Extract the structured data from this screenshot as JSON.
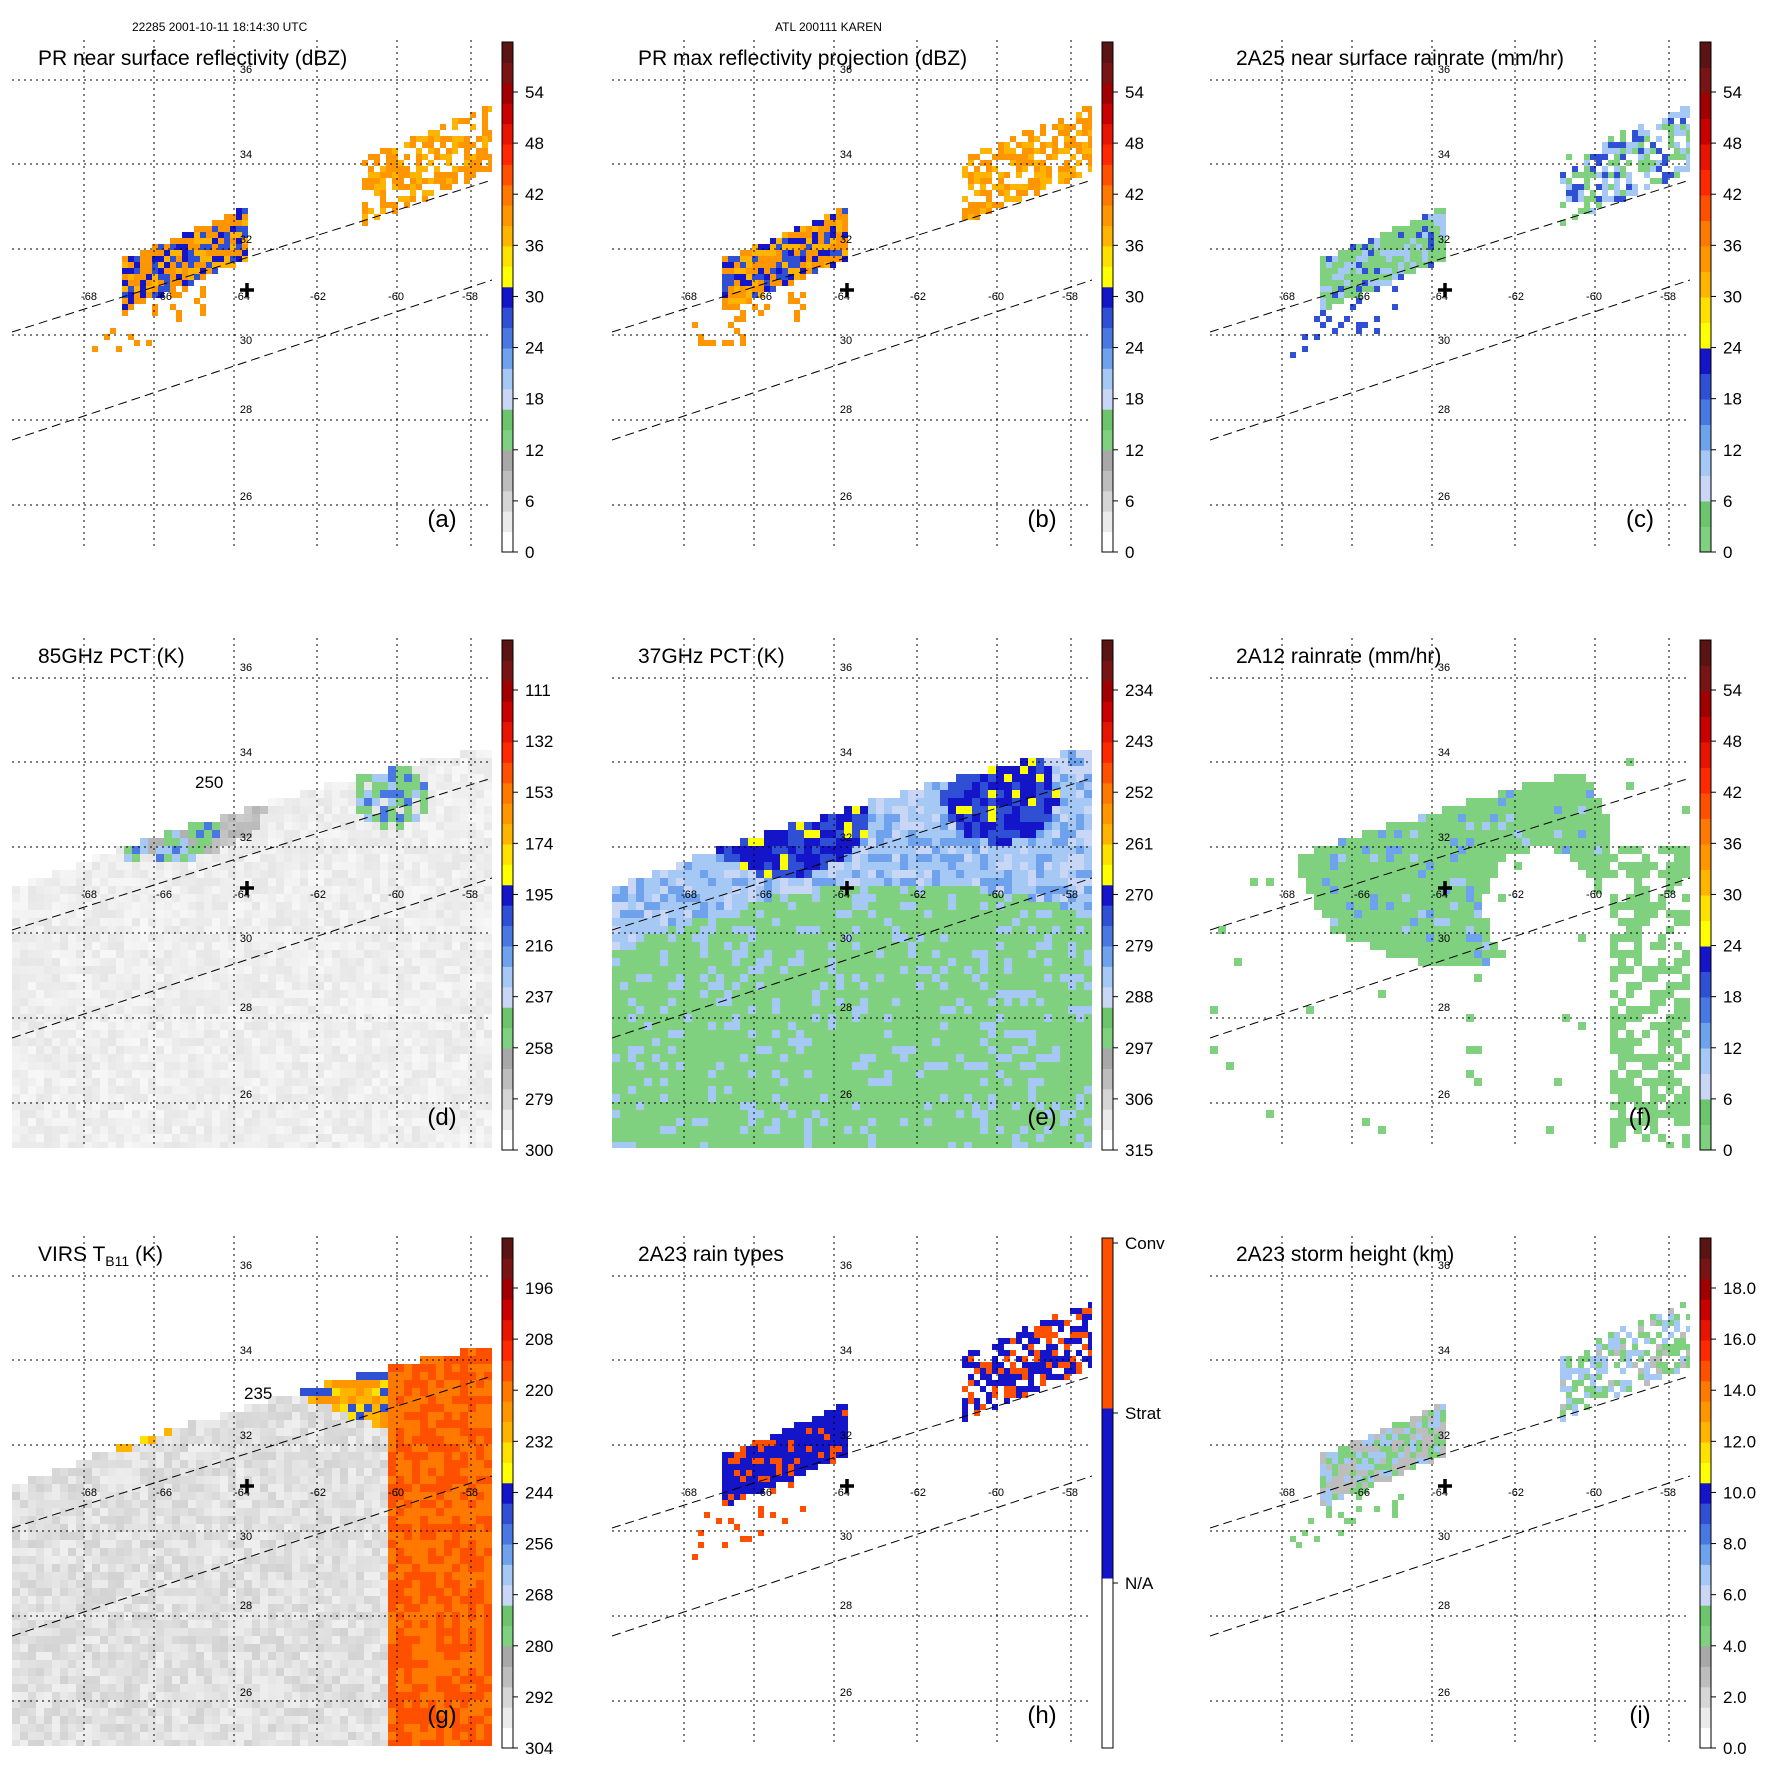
{
  "header": {
    "orbit_time": "22285 2001-10-11 18:14:30 UTC",
    "storm": "ATL 200111 KAREN"
  },
  "grid": {
    "lat_labels": [
      "36",
      "34",
      "32",
      "30",
      "28",
      "26"
    ],
    "lon_labels": [
      "-68",
      "-66",
      "-64",
      "-62",
      "-60",
      "-58"
    ]
  },
  "colors": {
    "reflectivity": [
      "#ffffff",
      "#ebebeb",
      "#d6d6d6",
      "#bdbdbd",
      "#a8a8a8",
      "#7fd17f",
      "#6cc56c",
      "#c9d6f5",
      "#a5c8f5",
      "#6fa2ec",
      "#4a78e2",
      "#2f4fd4",
      "#1414c8",
      "#ffff00",
      "#ffe100",
      "#ffb400",
      "#ff9600",
      "#ff7800",
      "#ff5000",
      "#ff2800",
      "#e61400",
      "#c80000",
      "#a00000",
      "#781414",
      "#5a1414"
    ],
    "rainrate": [
      "#7fd17f",
      "#6cc56c",
      "#c9d6f5",
      "#a5c8f5",
      "#6fa2ec",
      "#4a78e2",
      "#2f4fd4",
      "#1414c8",
      "#ffff00",
      "#ffe100",
      "#ffb400",
      "#ff9600",
      "#ff7800",
      "#ff5000",
      "#ff2800",
      "#e61400",
      "#c80000",
      "#a00000",
      "#781414",
      "#5a1414"
    ],
    "raintype": [
      "#ffffff",
      "#1414c8",
      "#ff5000"
    ],
    "storm_height": [
      "#ffffff",
      "#ebebeb",
      "#d6d6d6",
      "#bdbdbd",
      "#a8a8a8",
      "#7fd17f",
      "#6cc56c",
      "#c9d6f5",
      "#a5c8f5",
      "#6fa2ec",
      "#4a78e2",
      "#2f4fd4",
      "#1414c8",
      "#ffff00",
      "#ffe100",
      "#ffb400",
      "#ff9600",
      "#ff7800",
      "#ff5000",
      "#ff2800",
      "#e61400",
      "#c80000",
      "#a00000",
      "#781414",
      "#5a1414"
    ]
  },
  "chart_data": [
    {
      "type": "heatmap",
      "panel": "(a)",
      "title": "PR near surface reflectivity (dBZ)",
      "colorbar_ticks": [
        "54",
        "48",
        "42",
        "36",
        "30",
        "24",
        "18",
        "12",
        "6",
        "0"
      ],
      "range": [
        0,
        60
      ],
      "units": "dBZ"
    },
    {
      "type": "heatmap",
      "panel": "(b)",
      "title": "PR max reflectivity projection (dBZ)",
      "colorbar_ticks": [
        "54",
        "48",
        "42",
        "36",
        "30",
        "24",
        "18",
        "12",
        "6",
        "0"
      ],
      "range": [
        0,
        60
      ],
      "units": "dBZ"
    },
    {
      "type": "heatmap",
      "panel": "(c)",
      "title": "2A25 near surface rainrate (mm/hr)",
      "colorbar_ticks": [
        "54",
        "48",
        "42",
        "36",
        "30",
        "24",
        "18",
        "12",
        "6",
        "0"
      ],
      "range": [
        0,
        60
      ],
      "units": "mm/hr"
    },
    {
      "type": "heatmap",
      "panel": "(d)",
      "title": "85GHz PCT (K)",
      "colorbar_ticks": [
        "111",
        "132",
        "153",
        "174",
        "195",
        "216",
        "237",
        "258",
        "279",
        "300"
      ],
      "range": [
        90,
        300
      ],
      "units": "K",
      "contour_label": "250"
    },
    {
      "type": "heatmap",
      "panel": "(e)",
      "title": "37GHz PCT (K)",
      "colorbar_ticks": [
        "234",
        "243",
        "252",
        "261",
        "270",
        "279",
        "288",
        "297",
        "306",
        "315"
      ],
      "range": [
        225,
        315
      ],
      "units": "K"
    },
    {
      "type": "heatmap",
      "panel": "(f)",
      "title": "2A12 rainrate (mm/hr)",
      "colorbar_ticks": [
        "54",
        "48",
        "42",
        "36",
        "30",
        "24",
        "18",
        "12",
        "6",
        "0"
      ],
      "range": [
        0,
        60
      ],
      "units": "mm/hr"
    },
    {
      "type": "heatmap",
      "panel": "(g)",
      "title": "VIRS T",
      "title_sub": "B11",
      "title_tail": " (K)",
      "colorbar_ticks": [
        "196",
        "208",
        "220",
        "232",
        "244",
        "256",
        "268",
        "280",
        "292",
        "304"
      ],
      "range": [
        184,
        304
      ],
      "units": "K",
      "contour_label": "235"
    },
    {
      "type": "heatmap",
      "panel": "(h)",
      "title": "2A23 rain types",
      "colorbar_ticks": [
        "Conv",
        "Strat",
        "N/A"
      ],
      "categories": [
        "N/A",
        "Strat",
        "Conv"
      ]
    },
    {
      "type": "heatmap",
      "panel": "(i)",
      "title": "2A23 storm height (km)",
      "colorbar_ticks": [
        "18.0",
        "16.0",
        "14.0",
        "12.0",
        "10.0",
        "8.0",
        "6.0",
        "4.0",
        "2.0",
        "0.0"
      ],
      "range": [
        0,
        20
      ],
      "units": "km"
    }
  ]
}
